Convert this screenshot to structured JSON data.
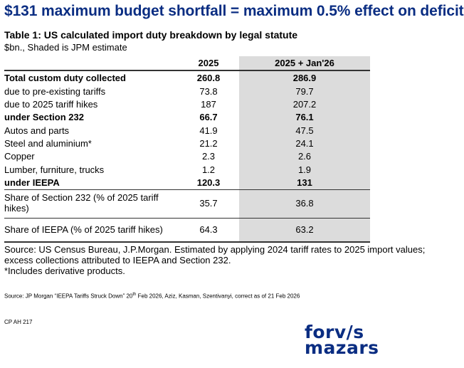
{
  "headline": "$131 maximum budget shortfall = maximum 0.5% effect on deficit",
  "table": {
    "title": "Table 1: US calculated import duty breakdown by legal statute",
    "subtitle": "$bn., Shaded is JPM estimate",
    "headers": [
      "",
      "2025",
      "2025 + Jan'26"
    ],
    "rows": [
      {
        "label": "Total custom duty collected",
        "v2025": "260.8",
        "vjan": "286.9",
        "bold": true
      },
      {
        "label": "due to pre-existing tariffs",
        "v2025": "73.8",
        "vjan": "79.7",
        "bold": false
      },
      {
        "label": "due to 2025 tariff hikes",
        "v2025": "187",
        "vjan": "207.2",
        "bold": false
      },
      {
        "label": "under Section 232",
        "v2025": "66.7",
        "vjan": "76.1",
        "bold": true
      },
      {
        "label": "Autos and parts",
        "v2025": "41.9",
        "vjan": "47.5",
        "bold": false
      },
      {
        "label": "Steel and aluminium*",
        "v2025": "21.2",
        "vjan": "24.1",
        "bold": false
      },
      {
        "label": "Copper",
        "v2025": "2.3",
        "vjan": "2.6",
        "bold": false
      },
      {
        "label": "Lumber, furniture, trucks",
        "v2025": "1.2",
        "vjan": "1.9",
        "bold": false
      },
      {
        "label": "under IEEPA",
        "v2025": "120.3",
        "vjan": "131",
        "bold": true
      },
      {
        "label": "Share of Section 232 (% of 2025 tariff hikes)",
        "v2025": "35.7",
        "vjan": "36.8",
        "bold": false
      },
      {
        "label": "Share of IEEPA (% of 2025 tariff hikes)",
        "v2025": "64.3",
        "vjan": "63.2",
        "bold": false
      }
    ]
  },
  "source_note": {
    "line1": "Source: US Census Bureau, J.P.Morgan. Estimated by applying 2024 tariff rates to 2025 import values; excess collections attributed to IEEPA and Section 232.",
    "line2": "*Includes derivative products."
  },
  "fine_print": {
    "before": "Source: JP Morgan “IEEPA Tariffs Struck Down” 20",
    "sup": "th",
    "after": " Feb 2026, Aziz, Kasman, Szentivanyi, correct as of 21 Feb 2026"
  },
  "reference": "CP AH 217",
  "logo": {
    "line1": "forv/s",
    "line2": "mazars"
  },
  "colors": {
    "headline": "#0a2d82",
    "shade": "#dcdcdc",
    "logo": "#0a2d82"
  }
}
